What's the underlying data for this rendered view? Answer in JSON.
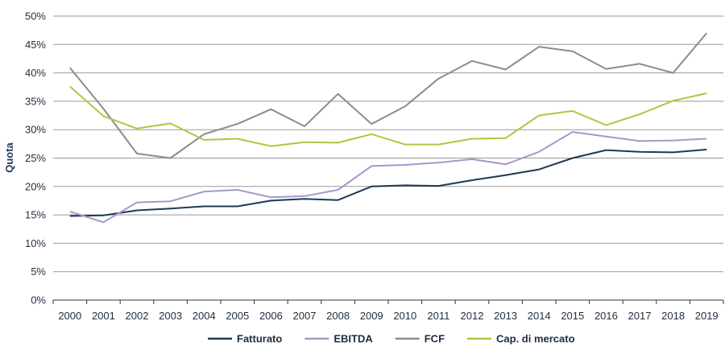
{
  "chart_data": {
    "type": "line",
    "title": "",
    "xlabel": "",
    "ylabel": "Quota",
    "ylim": [
      0,
      50
    ],
    "yticks": [
      "0%",
      "5%",
      "10%",
      "15%",
      "20%",
      "25%",
      "30%",
      "35%",
      "40%",
      "45%",
      "50%"
    ],
    "categories": [
      "2000",
      "2001",
      "2002",
      "2003",
      "2004",
      "2005",
      "2006",
      "2007",
      "2008",
      "2009",
      "2010",
      "2011",
      "2012",
      "2013",
      "2014",
      "2015",
      "2016",
      "2017",
      "2018",
      "2019"
    ],
    "grid": true,
    "legend_position": "bottom",
    "series": [
      {
        "name": "Fatturato",
        "color": "#1b3a57",
        "values": [
          14.8,
          14.9,
          15.8,
          16.1,
          16.5,
          16.5,
          17.5,
          17.8,
          17.6,
          20.0,
          20.2,
          20.1,
          21.1,
          22.0,
          23.0,
          25.0,
          26.4,
          26.1,
          26.0,
          26.5
        ]
      },
      {
        "name": "EBITDA",
        "color": "#a896cc",
        "values": [
          15.6,
          13.7,
          17.2,
          17.4,
          19.1,
          19.4,
          18.1,
          18.3,
          19.4,
          23.6,
          23.8,
          24.2,
          24.8,
          23.9,
          26.1,
          29.6,
          28.8,
          28.0,
          28.1,
          28.4
        ]
      },
      {
        "name": "FCF",
        "color": "#8c8c8c",
        "values": [
          40.9,
          33.7,
          25.8,
          25.0,
          29.2,
          31.0,
          33.6,
          30.6,
          36.3,
          31.0,
          34.1,
          39.0,
          42.1,
          40.6,
          44.6,
          43.8,
          40.7,
          41.6,
          40.0,
          47.0
        ]
      },
      {
        "name": "Cap. di mercato",
        "color": "#b5c43f",
        "values": [
          37.6,
          32.4,
          30.2,
          31.1,
          28.2,
          28.4,
          27.1,
          27.8,
          27.7,
          29.2,
          27.4,
          27.4,
          28.4,
          28.5,
          32.5,
          33.3,
          30.8,
          32.7,
          35.1,
          36.4
        ]
      }
    ]
  }
}
